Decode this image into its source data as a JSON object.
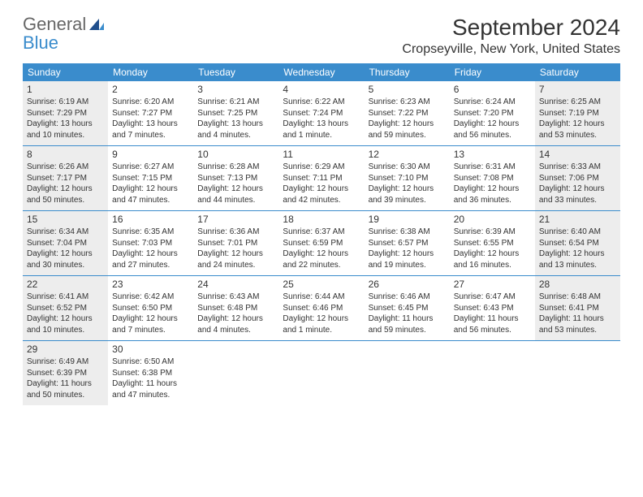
{
  "logo": {
    "text_general": "General",
    "text_blue": "Blue"
  },
  "title": "September 2024",
  "location": "Cropseyville, New York, United States",
  "dow": [
    "Sunday",
    "Monday",
    "Tuesday",
    "Wednesday",
    "Thursday",
    "Friday",
    "Saturday"
  ],
  "colors": {
    "accent": "#3a8ccc",
    "shaded": "#ededed",
    "text": "#333333",
    "background": "#ffffff"
  },
  "days": [
    {
      "n": 1,
      "shaded": true,
      "sunrise": "6:19 AM",
      "sunset": "7:29 PM",
      "daylight": "13 hours and 10 minutes."
    },
    {
      "n": 2,
      "shaded": false,
      "sunrise": "6:20 AM",
      "sunset": "7:27 PM",
      "daylight": "13 hours and 7 minutes."
    },
    {
      "n": 3,
      "shaded": false,
      "sunrise": "6:21 AM",
      "sunset": "7:25 PM",
      "daylight": "13 hours and 4 minutes."
    },
    {
      "n": 4,
      "shaded": false,
      "sunrise": "6:22 AM",
      "sunset": "7:24 PM",
      "daylight": "13 hours and 1 minute."
    },
    {
      "n": 5,
      "shaded": false,
      "sunrise": "6:23 AM",
      "sunset": "7:22 PM",
      "daylight": "12 hours and 59 minutes."
    },
    {
      "n": 6,
      "shaded": false,
      "sunrise": "6:24 AM",
      "sunset": "7:20 PM",
      "daylight": "12 hours and 56 minutes."
    },
    {
      "n": 7,
      "shaded": true,
      "sunrise": "6:25 AM",
      "sunset": "7:19 PM",
      "daylight": "12 hours and 53 minutes."
    },
    {
      "n": 8,
      "shaded": true,
      "sunrise": "6:26 AM",
      "sunset": "7:17 PM",
      "daylight": "12 hours and 50 minutes."
    },
    {
      "n": 9,
      "shaded": false,
      "sunrise": "6:27 AM",
      "sunset": "7:15 PM",
      "daylight": "12 hours and 47 minutes."
    },
    {
      "n": 10,
      "shaded": false,
      "sunrise": "6:28 AM",
      "sunset": "7:13 PM",
      "daylight": "12 hours and 44 minutes."
    },
    {
      "n": 11,
      "shaded": false,
      "sunrise": "6:29 AM",
      "sunset": "7:11 PM",
      "daylight": "12 hours and 42 minutes."
    },
    {
      "n": 12,
      "shaded": false,
      "sunrise": "6:30 AM",
      "sunset": "7:10 PM",
      "daylight": "12 hours and 39 minutes."
    },
    {
      "n": 13,
      "shaded": false,
      "sunrise": "6:31 AM",
      "sunset": "7:08 PM",
      "daylight": "12 hours and 36 minutes."
    },
    {
      "n": 14,
      "shaded": true,
      "sunrise": "6:33 AM",
      "sunset": "7:06 PM",
      "daylight": "12 hours and 33 minutes."
    },
    {
      "n": 15,
      "shaded": true,
      "sunrise": "6:34 AM",
      "sunset": "7:04 PM",
      "daylight": "12 hours and 30 minutes."
    },
    {
      "n": 16,
      "shaded": false,
      "sunrise": "6:35 AM",
      "sunset": "7:03 PM",
      "daylight": "12 hours and 27 minutes."
    },
    {
      "n": 17,
      "shaded": false,
      "sunrise": "6:36 AM",
      "sunset": "7:01 PM",
      "daylight": "12 hours and 24 minutes."
    },
    {
      "n": 18,
      "shaded": false,
      "sunrise": "6:37 AM",
      "sunset": "6:59 PM",
      "daylight": "12 hours and 22 minutes."
    },
    {
      "n": 19,
      "shaded": false,
      "sunrise": "6:38 AM",
      "sunset": "6:57 PM",
      "daylight": "12 hours and 19 minutes."
    },
    {
      "n": 20,
      "shaded": false,
      "sunrise": "6:39 AM",
      "sunset": "6:55 PM",
      "daylight": "12 hours and 16 minutes."
    },
    {
      "n": 21,
      "shaded": true,
      "sunrise": "6:40 AM",
      "sunset": "6:54 PM",
      "daylight": "12 hours and 13 minutes."
    },
    {
      "n": 22,
      "shaded": true,
      "sunrise": "6:41 AM",
      "sunset": "6:52 PM",
      "daylight": "12 hours and 10 minutes."
    },
    {
      "n": 23,
      "shaded": false,
      "sunrise": "6:42 AM",
      "sunset": "6:50 PM",
      "daylight": "12 hours and 7 minutes."
    },
    {
      "n": 24,
      "shaded": false,
      "sunrise": "6:43 AM",
      "sunset": "6:48 PM",
      "daylight": "12 hours and 4 minutes."
    },
    {
      "n": 25,
      "shaded": false,
      "sunrise": "6:44 AM",
      "sunset": "6:46 PM",
      "daylight": "12 hours and 1 minute."
    },
    {
      "n": 26,
      "shaded": false,
      "sunrise": "6:46 AM",
      "sunset": "6:45 PM",
      "daylight": "11 hours and 59 minutes."
    },
    {
      "n": 27,
      "shaded": false,
      "sunrise": "6:47 AM",
      "sunset": "6:43 PM",
      "daylight": "11 hours and 56 minutes."
    },
    {
      "n": 28,
      "shaded": true,
      "sunrise": "6:48 AM",
      "sunset": "6:41 PM",
      "daylight": "11 hours and 53 minutes."
    },
    {
      "n": 29,
      "shaded": true,
      "sunrise": "6:49 AM",
      "sunset": "6:39 PM",
      "daylight": "11 hours and 50 minutes."
    },
    {
      "n": 30,
      "shaded": false,
      "sunrise": "6:50 AM",
      "sunset": "6:38 PM",
      "daylight": "11 hours and 47 minutes."
    }
  ],
  "labels": {
    "sunrise": "Sunrise:",
    "sunset": "Sunset:",
    "daylight": "Daylight:"
  }
}
